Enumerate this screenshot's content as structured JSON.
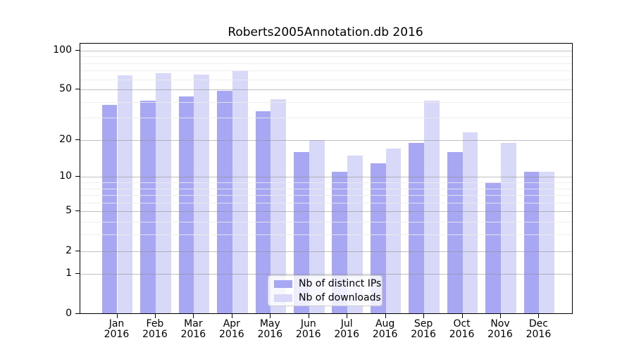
{
  "chart_data": {
    "type": "bar",
    "title": "Roberts2005Annotation.db 2016",
    "categories": [
      "Jan\n2016",
      "Feb\n2016",
      "Mar\n2016",
      "Apr\n2016",
      "May\n2016",
      "Jun\n2016",
      "Jul\n2016",
      "Aug\n2016",
      "Sep\n2016",
      "Oct\n2016",
      "Nov\n2016",
      "Dec\n2016"
    ],
    "series": [
      {
        "name": "Nb of distinct IPs",
        "color": "#a7a7f4",
        "values": [
          38,
          41,
          44,
          49,
          34,
          16,
          11,
          13,
          19,
          16,
          9,
          11
        ]
      },
      {
        "name": "Nb of downloads",
        "color": "#d8d8f8",
        "values": [
          64,
          67,
          65,
          70,
          42,
          20,
          15,
          17,
          41,
          23,
          19,
          11
        ]
      }
    ],
    "yscale": "log1p",
    "ylim": [
      0,
      113
    ],
    "yticks": [
      0,
      1,
      2,
      5,
      10,
      20,
      50,
      100
    ],
    "yticks_minor": [
      3,
      4,
      6,
      7,
      8,
      9,
      30,
      40,
      60,
      70,
      80,
      90
    ],
    "xlabel": "",
    "ylabel": "",
    "grid": "on",
    "grid_above_bars": true,
    "legend_position": "lower center inside"
  }
}
